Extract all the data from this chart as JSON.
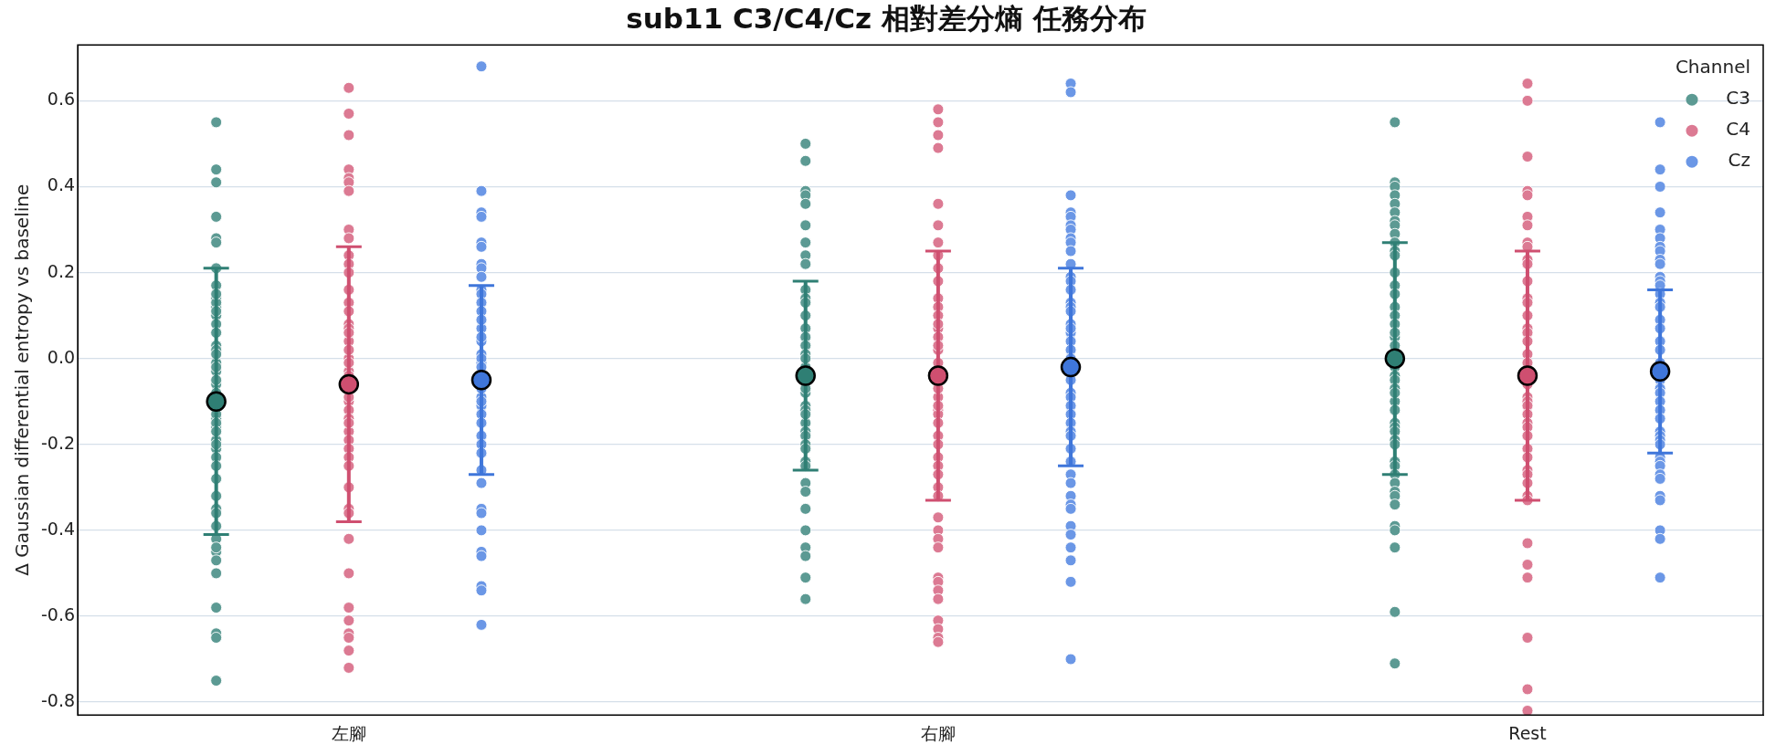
{
  "chart_data": {
    "type": "scatter",
    "title": "sub11 C3/C4/Cz 相對差分熵 任務分布",
    "ylabel": "Δ Gaussian differential entropy vs baseline",
    "legend_title": "Channel",
    "legend": "top right",
    "grid": "y",
    "marker": "circle",
    "categories": [
      "左腳",
      "右腳",
      "Rest"
    ],
    "ylim": [
      -0.83,
      0.73
    ],
    "yticks": [
      -0.8,
      -0.6,
      -0.4,
      -0.2,
      {
        "value": 0,
        "label": "0.0"
      },
      0.2,
      0.4,
      0.6
    ],
    "series": [
      {
        "name": "C3",
        "color": "#5c9a93",
        "x": [
          "左腳",
          "左腳",
          "左腳",
          "左腳",
          "左腳",
          "左腳",
          "左腳",
          "左腳",
          "左腳",
          "左腳",
          "左腳",
          "左腳",
          "左腳",
          "左腳",
          "左腳",
          "左腳",
          "左腳",
          "左腳",
          "左腳",
          "左腳",
          "左腳",
          "左腳",
          "左腳",
          "左腳",
          "左腳",
          "左腳",
          "左腳",
          "左腳",
          "左腳",
          "左腳",
          "左腳",
          "左腳",
          "左腳",
          "左腳",
          "左腳",
          "左腳",
          "左腳",
          "左腳",
          "左腳",
          "左腳",
          "左腳",
          "左腳",
          "左腳",
          "左腳",
          "左腳",
          "左腳",
          "左腳",
          "左腳",
          "左腳",
          "左腳",
          "右腳",
          "右腳",
          "右腳",
          "右腳",
          "右腳",
          "右腳",
          "右腳",
          "右腳",
          "右腳",
          "右腳",
          "右腳",
          "右腳",
          "右腳",
          "右腳",
          "右腳",
          "右腳",
          "右腳",
          "右腳",
          "右腳",
          "右腳",
          "右腳",
          "右腳",
          "右腳",
          "右腳",
          "右腳",
          "右腳",
          "右腳",
          "右腳",
          "右腳",
          "右腳",
          "右腳",
          "右腳",
          "右腳",
          "右腳",
          "右腳",
          "右腳",
          "右腳",
          "右腳",
          "右腳",
          "Rest",
          "Rest",
          "Rest",
          "Rest",
          "Rest",
          "Rest",
          "Rest",
          "Rest",
          "Rest",
          "Rest",
          "Rest",
          "Rest",
          "Rest",
          "Rest",
          "Rest",
          "Rest",
          "Rest",
          "Rest",
          "Rest",
          "Rest",
          "Rest",
          "Rest",
          "Rest",
          "Rest",
          "Rest",
          "Rest",
          "Rest",
          "Rest",
          "Rest",
          "Rest",
          "Rest",
          "Rest",
          "Rest",
          "Rest",
          "Rest",
          "Rest",
          "Rest",
          "Rest",
          "Rest",
          "Rest",
          "Rest",
          "Rest",
          "Rest",
          "Rest",
          "Rest"
        ],
        "values": [
          0.55,
          0.44,
          0.41,
          0.33,
          0.28,
          0.27,
          0.21,
          0.17,
          0.14,
          0.12,
          0.13,
          0.1,
          0.08,
          0.03,
          0.02,
          -0.01,
          -0.03,
          -0.06,
          -0.12,
          -0.14,
          -0.16,
          -0.19,
          -0.21,
          -0.23,
          -0.25,
          -0.28,
          -0.32,
          -0.35,
          -0.36,
          -0.39,
          -0.42,
          -0.45,
          -0.47,
          -0.44,
          -0.5,
          -0.58,
          -0.64,
          -0.65,
          -0.75,
          0.15,
          0.11,
          0.06,
          0.01,
          -0.02,
          -0.05,
          -0.08,
          -0.13,
          -0.15,
          -0.17,
          -0.2,
          0.5,
          0.46,
          0.39,
          0.38,
          0.36,
          0.31,
          0.27,
          0.24,
          0.22,
          0.16,
          0.14,
          0.13,
          0.1,
          0.07,
          0.05,
          0.03,
          0.01,
          -0.02,
          -0.08,
          -0.11,
          -0.12,
          -0.15,
          -0.17,
          -0.18,
          -0.2,
          -0.21,
          -0.24,
          -0.25,
          -0.29,
          -0.31,
          -0.35,
          -0.4,
          -0.44,
          -0.46,
          -0.51,
          -0.56,
          0.0,
          -0.07,
          -0.13,
          0.55,
          0.41,
          0.4,
          0.38,
          0.36,
          0.34,
          0.32,
          0.31,
          0.29,
          0.27,
          0.25,
          0.24,
          0.2,
          0.17,
          0.15,
          0.12,
          0.1,
          0.08,
          0.05,
          0.03,
          -0.02,
          -0.04,
          -0.05,
          -0.07,
          -0.1,
          -0.12,
          -0.15,
          -0.16,
          -0.17,
          -0.19,
          -0.2,
          -0.24,
          -0.25,
          -0.27,
          -0.29,
          -0.31,
          -0.32,
          -0.34,
          -0.39,
          -0.4,
          -0.44,
          -0.59,
          -0.71,
          0.06,
          -0.08
        ]
      },
      {
        "name": "C4",
        "color": "#dc7a93",
        "x": [
          "左腳",
          "左腳",
          "左腳",
          "左腳",
          "左腳",
          "左腳",
          "左腳",
          "左腳",
          "左腳",
          "左腳",
          "左腳",
          "左腳",
          "左腳",
          "左腳",
          "左腳",
          "左腳",
          "左腳",
          "左腳",
          "左腳",
          "左腳",
          "左腳",
          "左腳",
          "左腳",
          "左腳",
          "左腳",
          "左腳",
          "左腳",
          "左腳",
          "左腳",
          "左腳",
          "左腳",
          "左腳",
          "左腳",
          "左腳",
          "左腳",
          "左腳",
          "左腳",
          "左腳",
          "左腳",
          "左腳",
          "左腳",
          "左腳",
          "左腳",
          "左腳",
          "左腳",
          "右腳",
          "右腳",
          "右腳",
          "右腳",
          "右腳",
          "右腳",
          "右腳",
          "右腳",
          "右腳",
          "右腳",
          "右腳",
          "右腳",
          "右腳",
          "右腳",
          "右腳",
          "右腳",
          "右腳",
          "右腳",
          "右腳",
          "右腳",
          "右腳",
          "右腳",
          "右腳",
          "右腳",
          "右腳",
          "右腳",
          "右腳",
          "右腳",
          "右腳",
          "右腳",
          "右腳",
          "右腳",
          "右腳",
          "右腳",
          "右腳",
          "右腳",
          "右腳",
          "右腳",
          "右腳",
          "右腳",
          "右腳",
          "右腳",
          "右腳",
          "右腳",
          "Rest",
          "Rest",
          "Rest",
          "Rest",
          "Rest",
          "Rest",
          "Rest",
          "Rest",
          "Rest",
          "Rest",
          "Rest",
          "Rest",
          "Rest",
          "Rest",
          "Rest",
          "Rest",
          "Rest",
          "Rest",
          "Rest",
          "Rest",
          "Rest",
          "Rest",
          "Rest",
          "Rest",
          "Rest",
          "Rest",
          "Rest",
          "Rest",
          "Rest",
          "Rest",
          "Rest",
          "Rest",
          "Rest",
          "Rest",
          "Rest",
          "Rest",
          "Rest",
          "Rest",
          "Rest",
          "Rest",
          "Rest"
        ],
        "values": [
          0.63,
          0.57,
          0.52,
          0.44,
          0.42,
          0.41,
          0.39,
          0.3,
          0.28,
          0.24,
          0.22,
          0.2,
          0.16,
          0.13,
          0.11,
          0.08,
          0.07,
          0.04,
          0.0,
          -0.03,
          -0.1,
          -0.12,
          -0.14,
          -0.17,
          -0.19,
          -0.21,
          -0.23,
          -0.25,
          -0.3,
          -0.35,
          -0.36,
          -0.42,
          -0.5,
          -0.58,
          -0.61,
          -0.64,
          -0.65,
          -0.68,
          -0.72,
          0.06,
          0.02,
          -0.01,
          -0.04,
          -0.09,
          -0.15,
          0.58,
          0.55,
          0.52,
          0.49,
          0.36,
          0.31,
          0.27,
          0.24,
          0.21,
          0.18,
          0.14,
          0.12,
          0.1,
          0.07,
          0.05,
          0.02,
          -0.01,
          -0.09,
          -0.12,
          -0.13,
          -0.15,
          -0.18,
          -0.2,
          -0.23,
          -0.25,
          -0.27,
          -0.3,
          -0.32,
          -0.37,
          -0.4,
          -0.42,
          -0.44,
          -0.51,
          -0.52,
          -0.54,
          -0.56,
          -0.61,
          -0.63,
          -0.65,
          -0.66,
          0.08,
          0.03,
          -0.07,
          -0.11,
          0.64,
          0.6,
          0.47,
          0.39,
          0.38,
          0.33,
          0.31,
          0.27,
          0.26,
          0.23,
          0.22,
          0.18,
          0.14,
          0.13,
          0.1,
          0.07,
          0.06,
          0.04,
          0.01,
          -0.01,
          -0.06,
          -0.09,
          -0.1,
          -0.11,
          -0.13,
          -0.15,
          -0.16,
          -0.18,
          -0.21,
          -0.23,
          -0.26,
          -0.27,
          -0.29,
          -0.32,
          -0.33,
          -0.43,
          -0.48,
          -0.51,
          -0.65,
          -0.77,
          -0.82
        ]
      },
      {
        "name": "Cz",
        "color": "#6b97e6",
        "x": [
          "左腳",
          "左腳",
          "左腳",
          "左腳",
          "左腳",
          "左腳",
          "左腳",
          "左腳",
          "左腳",
          "左腳",
          "左腳",
          "左腳",
          "左腳",
          "左腳",
          "左腳",
          "左腳",
          "左腳",
          "左腳",
          "左腳",
          "左腳",
          "左腳",
          "左腳",
          "左腳",
          "左腳",
          "左腳",
          "左腳",
          "左腳",
          "左腳",
          "左腳",
          "左腳",
          "左腳",
          "左腳",
          "左腳",
          "左腳",
          "左腳",
          "左腳",
          "左腳",
          "左腳",
          "左腳",
          "左腳",
          "右腳",
          "右腳",
          "右腳",
          "右腳",
          "右腳",
          "右腳",
          "右腳",
          "右腳",
          "右腳",
          "右腳",
          "右腳",
          "右腳",
          "右腳",
          "右腳",
          "右腳",
          "右腳",
          "右腳",
          "右腳",
          "右腳",
          "右腳",
          "右腳",
          "右腳",
          "右腳",
          "右腳",
          "右腳",
          "右腳",
          "右腳",
          "右腳",
          "右腳",
          "右腳",
          "右腳",
          "右腳",
          "右腳",
          "右腳",
          "右腳",
          "右腳",
          "右腳",
          "右腳",
          "右腳",
          "右腳",
          "右腳",
          "右腳",
          "右腳",
          "右腳",
          "Rest",
          "Rest",
          "Rest",
          "Rest",
          "Rest",
          "Rest",
          "Rest",
          "Rest",
          "Rest",
          "Rest",
          "Rest",
          "Rest",
          "Rest",
          "Rest",
          "Rest",
          "Rest",
          "Rest",
          "Rest",
          "Rest",
          "Rest",
          "Rest",
          "Rest",
          "Rest",
          "Rest",
          "Rest",
          "Rest",
          "Rest",
          "Rest",
          "Rest",
          "Rest",
          "Rest",
          "Rest",
          "Rest",
          "Rest",
          "Rest",
          "Rest",
          "Rest",
          "Rest",
          "Rest",
          "Rest",
          "Rest"
        ],
        "values": [
          0.68,
          0.39,
          0.34,
          0.33,
          0.27,
          0.26,
          0.22,
          0.21,
          0.19,
          0.16,
          0.15,
          0.13,
          0.11,
          0.07,
          0.04,
          0.01,
          -0.01,
          -0.09,
          -0.11,
          -0.13,
          -0.15,
          -0.18,
          -0.2,
          -0.22,
          -0.26,
          -0.29,
          -0.35,
          -0.36,
          -0.4,
          -0.45,
          -0.46,
          -0.53,
          -0.54,
          -0.62,
          0.09,
          0.05,
          0.0,
          -0.02,
          -0.07,
          -0.1,
          0.64,
          0.62,
          0.38,
          0.34,
          0.33,
          0.31,
          0.3,
          0.28,
          0.27,
          0.25,
          0.22,
          0.19,
          0.18,
          0.16,
          0.13,
          0.12,
          0.11,
          0.08,
          0.06,
          0.04,
          0.02,
          0.0,
          -0.05,
          -0.08,
          -0.09,
          -0.11,
          -0.13,
          -0.15,
          -0.17,
          -0.18,
          -0.21,
          -0.24,
          -0.27,
          -0.29,
          -0.32,
          -0.34,
          -0.35,
          -0.39,
          -0.41,
          -0.44,
          -0.47,
          -0.52,
          -0.7,
          0.07,
          0.55,
          0.44,
          0.4,
          0.34,
          0.3,
          0.28,
          0.26,
          0.25,
          0.23,
          0.22,
          0.19,
          0.18,
          0.17,
          0.15,
          0.13,
          0.12,
          0.09,
          0.07,
          0.04,
          0.02,
          -0.01,
          -0.05,
          -0.07,
          -0.08,
          -0.1,
          -0.12,
          -0.14,
          -0.17,
          -0.18,
          -0.19,
          -0.2,
          -0.23,
          -0.24,
          -0.25,
          -0.27,
          -0.28,
          -0.32,
          -0.33,
          -0.4,
          -0.42,
          -0.51
        ]
      },
      {
        "color": "#2f7f74",
        "values": [
          -0.1,
          -0.04,
          0.0
        ],
        "errors": [
          0.31,
          0.22,
          0.27
        ]
      },
      {
        "color": "#cf4f70",
        "values": [
          -0.06,
          -0.04,
          -0.04
        ],
        "errors": [
          0.32,
          0.29,
          0.29
        ]
      },
      {
        "color": "#3f76da",
        "values": [
          -0.05,
          -0.02,
          -0.03
        ],
        "errors": [
          0.22,
          0.23,
          0.19
        ]
      }
    ]
  }
}
